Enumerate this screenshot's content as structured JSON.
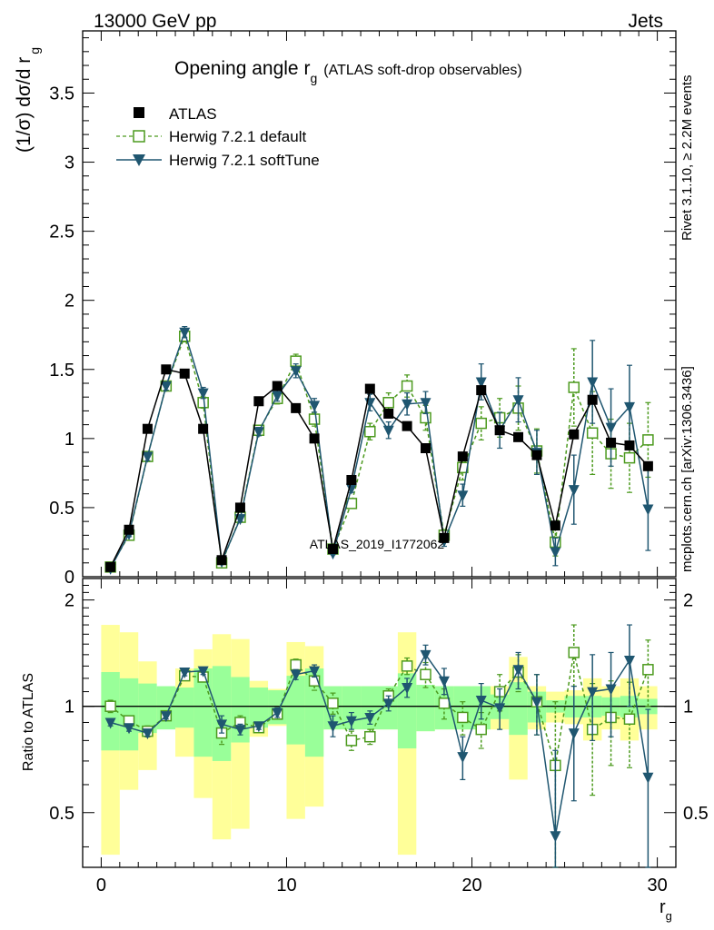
{
  "header": {
    "left": "13000 GeV pp",
    "right": "Jets"
  },
  "side_labels": {
    "rivet": "Rivet 3.1.10, ≥ 2.2M events",
    "mcplots": "mcplots.cern.ch [arXiv:1306.3436]"
  },
  "colors": {
    "data": "#000000",
    "default": "#4c9a1e",
    "soft": "#1f5670",
    "band_yellow": "#ffff99",
    "band_green": "#99ff99"
  },
  "chart_data": [
    {
      "type": "scatter",
      "title_main": "Opening angle r",
      "title_sub": "g",
      "title_note": "(ATLAS soft-drop observables)",
      "ylabel": "(1/σ) dσ/d r",
      "ylabel_sub": "g",
      "watermark": "ATLAS_2019_I1772062",
      "xlim": [
        -1,
        31
      ],
      "ylim": [
        0,
        3.95
      ],
      "yticks": [
        "0",
        "0.5",
        "1",
        "1.5",
        "2",
        "2.5",
        "3",
        "3.5"
      ],
      "x": [
        0.5,
        1.5,
        2.5,
        3.5,
        4.5,
        5.5,
        6.5,
        7.5,
        8.5,
        9.5,
        10.5,
        11.5,
        12.5,
        13.5,
        14.5,
        15.5,
        16.5,
        17.5,
        18.5,
        19.5,
        20.5,
        21.5,
        22.5,
        23.5,
        24.5,
        25.5,
        26.5,
        27.5,
        28.5,
        29.5
      ],
      "series": [
        {
          "name": "ATLAS",
          "marker": "square-filled",
          "values": [
            0.07,
            0.34,
            1.07,
            1.5,
            1.47,
            1.07,
            0.12,
            0.5,
            1.27,
            1.38,
            1.22,
            1.0,
            0.2,
            0.7,
            1.36,
            1.18,
            1.09,
            0.93,
            0.28,
            0.87,
            1.35,
            1.06,
            1.01,
            0.88,
            0.37,
            1.03,
            1.28,
            0.97,
            0.95,
            0.8
          ]
        },
        {
          "name": "Herwig 7.2.1 default",
          "marker": "square-open",
          "line": "dashed",
          "values": [
            0.07,
            0.3,
            0.87,
            1.38,
            1.74,
            1.26,
            0.1,
            0.43,
            1.06,
            1.29,
            1.56,
            1.14,
            0.2,
            0.53,
            1.05,
            1.26,
            1.38,
            1.15,
            0.3,
            0.79,
            1.11,
            1.15,
            1.22,
            0.91,
            0.25,
            1.37,
            1.04,
            0.89,
            0.86,
            0.99
          ],
          "errors": [
            0.01,
            0.02,
            0.03,
            0.03,
            0.04,
            0.04,
            0.01,
            0.02,
            0.03,
            0.04,
            0.05,
            0.05,
            0.01,
            0.03,
            0.06,
            0.07,
            0.08,
            0.09,
            0.04,
            0.09,
            0.12,
            0.14,
            0.16,
            0.16,
            0.1,
            0.28,
            0.3,
            0.25,
            0.25,
            0.27
          ]
        },
        {
          "name": "Herwig 7.2.1 softTune",
          "marker": "triangle-down",
          "line": "solid",
          "values": [
            0.06,
            0.31,
            0.87,
            1.38,
            1.77,
            1.33,
            0.11,
            0.42,
            1.05,
            1.31,
            1.49,
            1.24,
            0.17,
            0.64,
            1.26,
            1.06,
            1.25,
            1.26,
            0.26,
            0.59,
            1.41,
            1.06,
            1.28,
            0.9,
            0.18,
            0.63,
            1.41,
            1.08,
            1.23,
            0.49
          ],
          "errors": [
            0.01,
            0.02,
            0.03,
            0.03,
            0.04,
            0.04,
            0.01,
            0.02,
            0.03,
            0.04,
            0.05,
            0.05,
            0.01,
            0.03,
            0.06,
            0.06,
            0.08,
            0.08,
            0.04,
            0.08,
            0.13,
            0.13,
            0.16,
            0.16,
            0.1,
            0.25,
            0.3,
            0.28,
            0.3,
            0.3
          ]
        }
      ]
    },
    {
      "type": "scatter",
      "ylabel": "Ratio to ATLAS",
      "xlabel": "r",
      "xlabel_sub": "g",
      "xlim": [
        -1,
        31
      ],
      "ylim": [
        0.35,
        2.3
      ],
      "xticks": [
        "0",
        "10",
        "20",
        "30"
      ],
      "yticks": [
        "0.5",
        "1",
        "2"
      ],
      "x": [
        0.5,
        1.5,
        2.5,
        3.5,
        4.5,
        5.5,
        6.5,
        7.5,
        8.5,
        9.5,
        10.5,
        11.5,
        12.5,
        13.5,
        14.5,
        15.5,
        16.5,
        17.5,
        18.5,
        19.5,
        20.5,
        21.5,
        22.5,
        23.5,
        24.5,
        25.5,
        26.5,
        27.5,
        28.5,
        29.5
      ],
      "band_green": [
        [
          0.75,
          1.25
        ],
        [
          0.75,
          1.2
        ],
        [
          0.84,
          1.16
        ],
        [
          0.86,
          1.14
        ],
        [
          0.87,
          1.13
        ],
        [
          0.72,
          1.28
        ],
        [
          0.7,
          1.3
        ],
        [
          0.79,
          1.21
        ],
        [
          0.87,
          1.13
        ],
        [
          0.89,
          1.11
        ],
        [
          0.78,
          1.22
        ],
        [
          0.72,
          1.28
        ],
        [
          0.86,
          1.14
        ],
        [
          0.86,
          1.14
        ],
        [
          0.86,
          1.14
        ],
        [
          0.86,
          1.14
        ],
        [
          0.76,
          1.24
        ],
        [
          0.85,
          1.15
        ],
        [
          0.86,
          1.14
        ],
        [
          0.86,
          1.14
        ],
        [
          0.86,
          1.14
        ],
        [
          0.92,
          1.08
        ],
        [
          0.83,
          1.17
        ],
        [
          0.9,
          1.1
        ],
        [
          0.96,
          1.04
        ],
        [
          0.93,
          1.07
        ],
        [
          0.93,
          1.07
        ],
        [
          0.94,
          1.06
        ],
        [
          0.93,
          1.07
        ],
        [
          0.95,
          1.05
        ]
      ],
      "band_yellow": [
        [
          0.38,
          1.7
        ],
        [
          0.58,
          1.62
        ],
        [
          0.66,
          1.34
        ],
        [
          0.88,
          1.12
        ],
        [
          0.72,
          1.28
        ],
        [
          0.55,
          1.45
        ],
        [
          0.42,
          1.6
        ],
        [
          0.45,
          1.55
        ],
        [
          0.82,
          1.18
        ],
        [
          0.88,
          1.12
        ],
        [
          0.48,
          1.52
        ],
        [
          0.52,
          1.48
        ],
        [
          0.86,
          1.14
        ],
        [
          0.86,
          1.14
        ],
        [
          0.86,
          1.14
        ],
        [
          0.86,
          1.14
        ],
        [
          0.38,
          1.62
        ],
        [
          0.85,
          1.15
        ],
        [
          0.86,
          1.14
        ],
        [
          0.86,
          1.14
        ],
        [
          0.86,
          1.14
        ],
        [
          0.86,
          1.14
        ],
        [
          0.62,
          1.38
        ],
        [
          0.86,
          1.14
        ],
        [
          0.9,
          1.1
        ],
        [
          0.89,
          1.11
        ],
        [
          0.8,
          1.2
        ],
        [
          0.86,
          1.14
        ],
        [
          0.8,
          1.2
        ],
        [
          0.86,
          1.14
        ]
      ],
      "series": [
        {
          "name": "Herwig 7.2.1 default",
          "values": [
            1.0,
            0.91,
            0.85,
            0.94,
            1.22,
            1.21,
            0.84,
            0.9,
            0.87,
            0.95,
            1.31,
            1.18,
            1.02,
            0.8,
            0.82,
            1.07,
            1.3,
            1.23,
            1.02,
            0.93,
            0.86,
            1.1,
            1.25,
            1.03,
            0.68,
            1.42,
            0.86,
            0.93,
            0.92,
            1.27
          ],
          "errors": [
            0.04,
            0.03,
            0.03,
            0.02,
            0.03,
            0.03,
            0.06,
            0.04,
            0.02,
            0.03,
            0.05,
            0.07,
            0.07,
            0.05,
            0.04,
            0.05,
            0.07,
            0.1,
            0.1,
            0.1,
            0.1,
            0.13,
            0.15,
            0.2,
            0.35,
            0.28,
            0.3,
            0.25,
            0.25,
            0.27
          ]
        },
        {
          "name": "Herwig 7.2.1 softTune",
          "values": [
            0.9,
            0.87,
            0.84,
            0.94,
            1.25,
            1.26,
            0.89,
            0.86,
            0.88,
            0.96,
            1.23,
            1.26,
            0.88,
            0.91,
            0.93,
            1.02,
            1.13,
            1.4,
            1.18,
            0.72,
            1.04,
            0.99,
            1.27,
            1.03,
            0.43,
            0.84,
            1.1,
            1.12,
            1.35,
            0.63
          ],
          "errors": [
            0.02,
            0.02,
            0.02,
            0.02,
            0.03,
            0.03,
            0.05,
            0.03,
            0.02,
            0.03,
            0.04,
            0.05,
            0.06,
            0.05,
            0.04,
            0.05,
            0.07,
            0.09,
            0.1,
            0.1,
            0.12,
            0.13,
            0.15,
            0.2,
            0.32,
            0.3,
            0.3,
            0.3,
            0.35,
            0.35
          ]
        }
      ]
    }
  ]
}
